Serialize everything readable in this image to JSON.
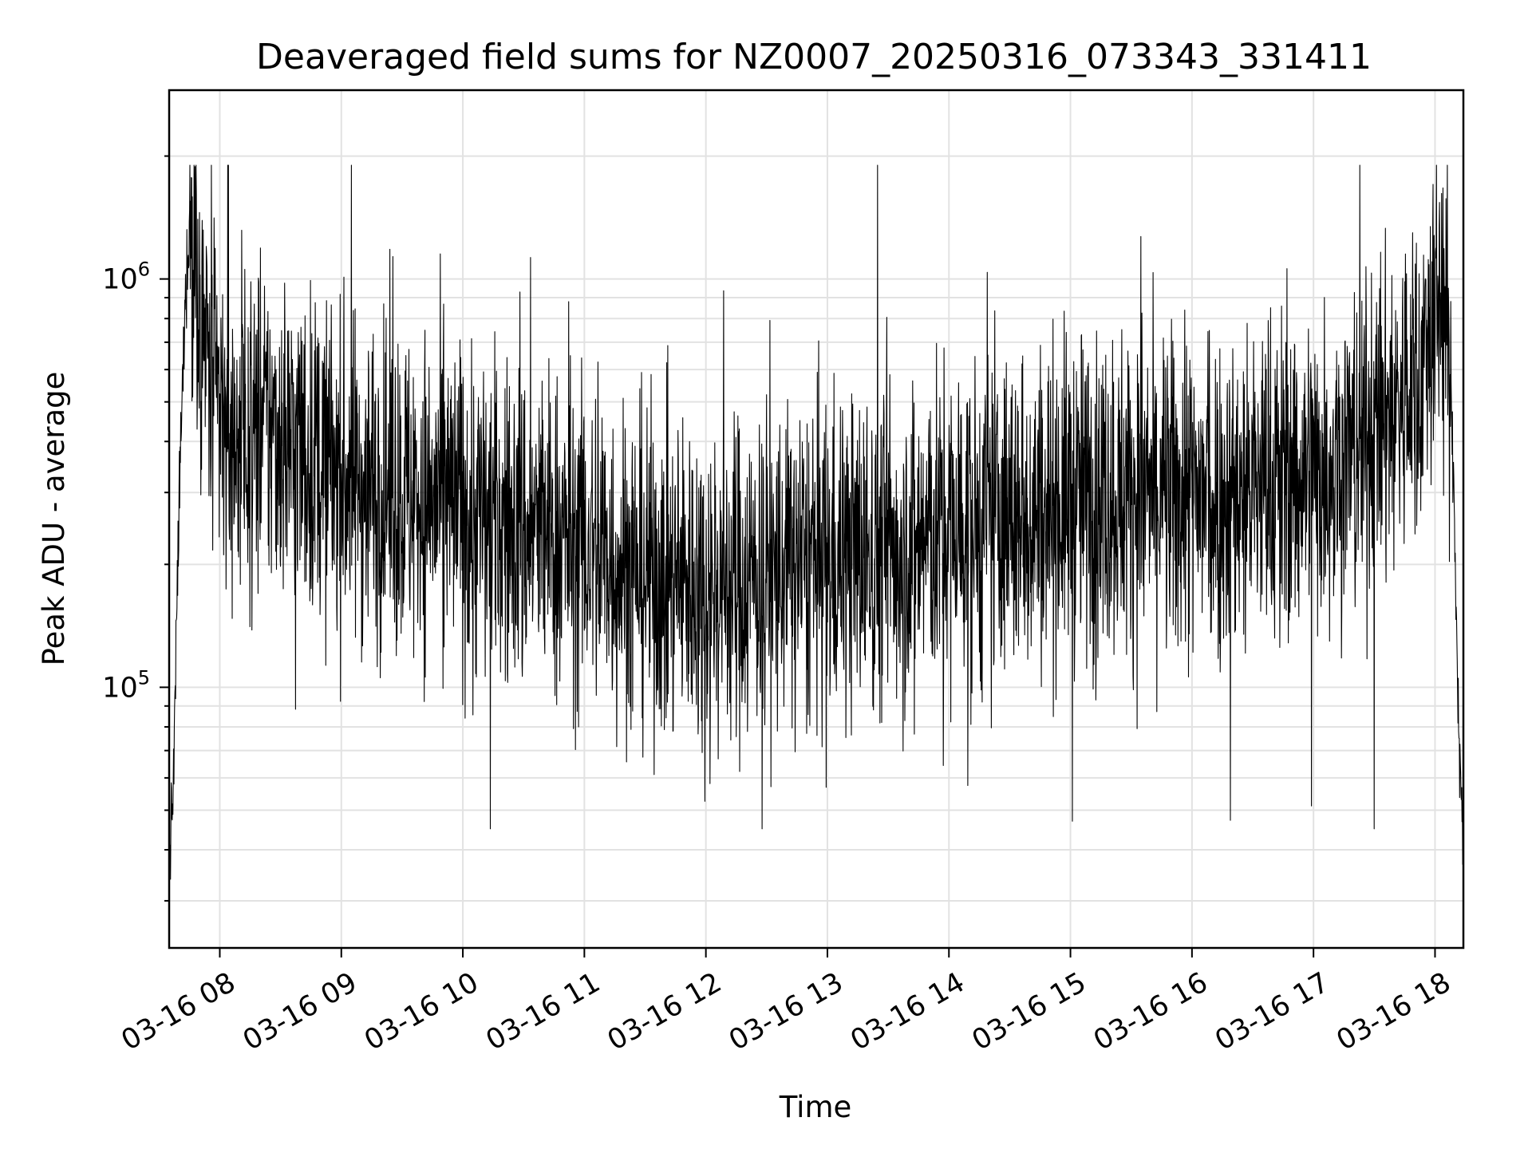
{
  "chart_data": {
    "type": "line",
    "title": "Deaveraged field sums for NZ0007_20250316_073343_331411",
    "xlabel": "Time",
    "ylabel": "Peak ADU - average",
    "yscale": "log",
    "grid": true,
    "x_tick_labels": [
      "03-16 08",
      "03-16 09",
      "03-16 10",
      "03-16 11",
      "03-16 12",
      "03-16 13",
      "03-16 14",
      "03-16 15",
      "03-16 16",
      "03-16 17",
      "03-16 18"
    ],
    "y_tick_labels": [
      {
        "base": "10",
        "exp": "5"
      },
      {
        "base": "10",
        "exp": "6"
      }
    ],
    "xlim": [
      "2025-03-16 07:35",
      "2025-03-16 18:14"
    ],
    "ylim": [
      23000,
      2900000
    ],
    "series": [
      {
        "color": "#000000",
        "x": [
          "07:35",
          "07:37",
          "07:40",
          "07:43",
          "07:45",
          "07:48",
          "07:51",
          "07:55",
          "08:00",
          "08:05",
          "08:10",
          "08:20",
          "08:30",
          "08:40",
          "08:50",
          "09:00",
          "09:10",
          "09:20",
          "09:30",
          "09:40",
          "09:50",
          "10:00",
          "10:10",
          "10:20",
          "10:30",
          "10:40",
          "10:50",
          "11:00",
          "11:10",
          "11:20",
          "11:30",
          "11:40",
          "11:50",
          "12:00",
          "12:10",
          "12:20",
          "12:30",
          "12:40",
          "12:50",
          "13:00",
          "13:10",
          "13:20",
          "13:30",
          "13:40",
          "13:50",
          "14:00",
          "14:10",
          "14:20",
          "14:30",
          "14:40",
          "14:50",
          "15:00",
          "15:10",
          "15:20",
          "15:30",
          "15:40",
          "15:50",
          "16:00",
          "16:10",
          "16:20",
          "16:30",
          "16:40",
          "16:50",
          "17:00",
          "17:10",
          "17:20",
          "17:30",
          "17:40",
          "17:50",
          "17:55",
          "18:00",
          "18:03",
          "18:06",
          "18:09",
          "18:12",
          "18:14"
        ],
        "y": [
          38000,
          55000,
          300000,
          900000,
          1350000,
          1100000,
          800000,
          550000,
          450000,
          420000,
          410000,
          430000,
          420000,
          380000,
          350000,
          330000,
          320000,
          310000,
          300000,
          290000,
          280000,
          270000,
          260000,
          250000,
          245000,
          240000,
          230000,
          220000,
          210000,
          200000,
          190000,
          185000,
          180000,
          178000,
          180000,
          185000,
          190000,
          195000,
          200000,
          205000,
          210000,
          215000,
          220000,
          225000,
          235000,
          240000,
          245000,
          250000,
          260000,
          270000,
          280000,
          290000,
          295000,
          300000,
          300000,
          295000,
          290000,
          290000,
          295000,
          300000,
          310000,
          320000,
          330000,
          340000,
          360000,
          380000,
          420000,
          480000,
          560000,
          650000,
          850000,
          950000,
          700000,
          350000,
          70000,
          42000
        ],
        "noise_range": [
          45000,
          1900000
        ]
      }
    ]
  }
}
